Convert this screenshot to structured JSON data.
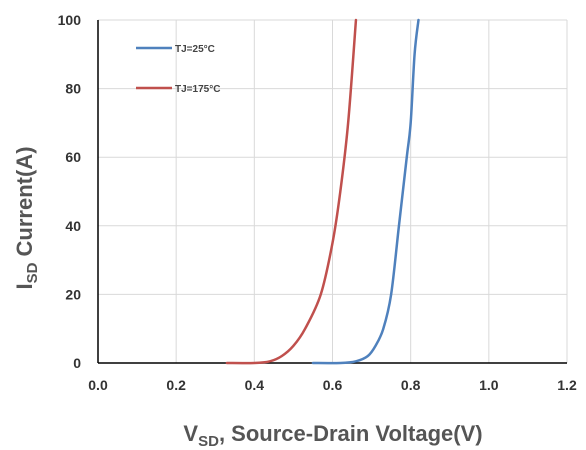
{
  "chart_data": {
    "type": "line",
    "title": "",
    "xlabel": {
      "main": "V",
      "sub": "SD",
      "rest": ", Source-Drain Voltage(V)"
    },
    "ylabel": {
      "main": "I",
      "sub": "SD",
      "rest": " Current(A)"
    },
    "xlim": [
      0.0,
      1.2
    ],
    "ylim": [
      0,
      100
    ],
    "x_ticks": [
      "0.0",
      "0.2",
      "0.4",
      "0.6",
      "0.8",
      "1.0",
      "1.2"
    ],
    "y_ticks": [
      "0",
      "20",
      "40",
      "60",
      "80",
      "100"
    ],
    "grid": true,
    "legend": "top-left",
    "series": [
      {
        "name": "TJ=25°C",
        "color": "#4f81bd",
        "points": [
          [
            0.55,
            0
          ],
          [
            0.62,
            0
          ],
          [
            0.66,
            0.5
          ],
          [
            0.69,
            2
          ],
          [
            0.71,
            5
          ],
          [
            0.73,
            10
          ],
          [
            0.75,
            20
          ],
          [
            0.77,
            40
          ],
          [
            0.79,
            60
          ],
          [
            0.8,
            70
          ],
          [
            0.81,
            90
          ],
          [
            0.82,
            100
          ]
        ]
      },
      {
        "name": "TJ=175°C",
        "color": "#c0504d",
        "points": [
          [
            0.33,
            0
          ],
          [
            0.4,
            0
          ],
          [
            0.44,
            0.5
          ],
          [
            0.47,
            2
          ],
          [
            0.5,
            5
          ],
          [
            0.53,
            10
          ],
          [
            0.57,
            20
          ],
          [
            0.6,
            35
          ],
          [
            0.62,
            50
          ],
          [
            0.64,
            70
          ],
          [
            0.66,
            100
          ]
        ]
      }
    ]
  }
}
